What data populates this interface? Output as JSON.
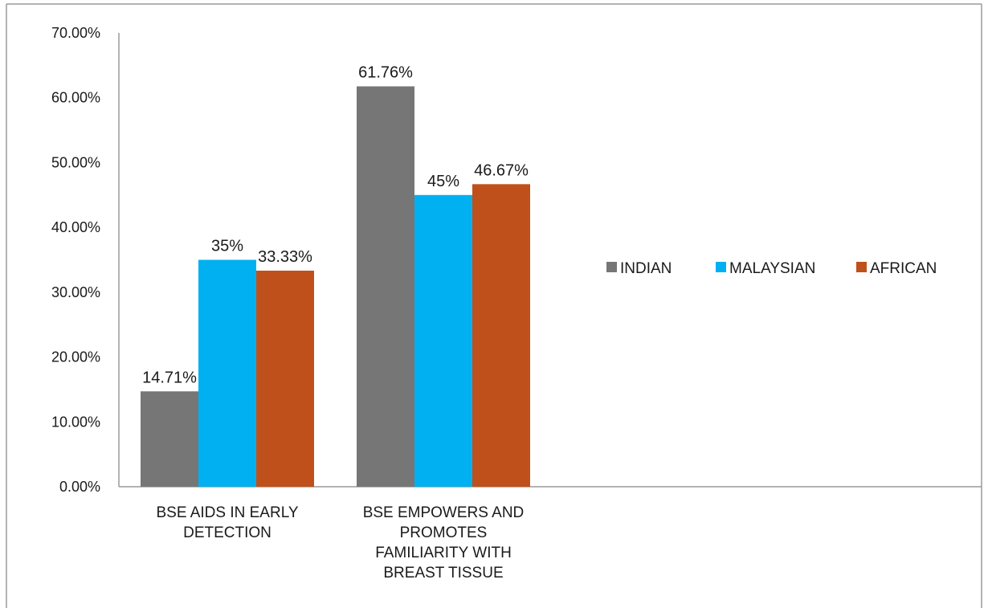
{
  "chart_data": {
    "type": "bar",
    "title": "",
    "xlabel": "",
    "ylabel": "",
    "ylim": [
      0,
      70
    ],
    "y_ticks": [
      "0.00%",
      "10.00%",
      "20.00%",
      "30.00%",
      "40.00%",
      "50.00%",
      "60.00%",
      "70.00%"
    ],
    "categories": [
      [
        "BSE AIDS IN EARLY",
        "DETECTION"
      ],
      [
        "BSE EMPOWERS AND",
        "PROMOTES",
        "FAMILIARITY WITH",
        "BREAST TISSUE"
      ]
    ],
    "series": [
      {
        "name": "INDIAN",
        "color": "#767676",
        "values": [
          14.71,
          61.76
        ],
        "labels": [
          "14.71%",
          "61.76%"
        ]
      },
      {
        "name": "MALAYSIAN",
        "color": "#00b0f0",
        "values": [
          35,
          45
        ],
        "labels": [
          "35%",
          "45%"
        ]
      },
      {
        "name": "AFRICAN",
        "color": "#c0501b",
        "values": [
          33.33,
          46.67
        ],
        "labels": [
          "33.33%",
          "46.67%"
        ]
      }
    ],
    "legend_position": "right",
    "grid": false
  }
}
